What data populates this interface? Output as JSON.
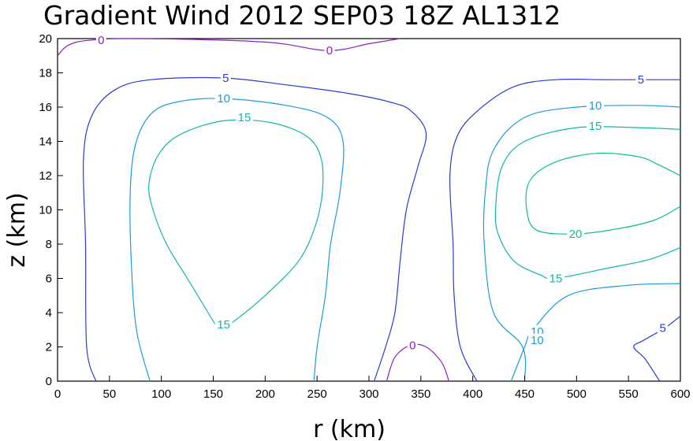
{
  "chart_data": {
    "type": "contour",
    "title": "Gradient Wind 2012 SEP03 18Z  AL1312",
    "xlabel": "r (km)",
    "ylabel": "z (km)",
    "xlim": [
      0,
      600
    ],
    "ylim": [
      0,
      20
    ],
    "x_ticks": [
      0,
      50,
      100,
      150,
      200,
      250,
      300,
      350,
      400,
      450,
      500,
      550,
      600
    ],
    "y_ticks": [
      0,
      2,
      4,
      6,
      8,
      10,
      12,
      14,
      16,
      18,
      20
    ],
    "grid": false,
    "legend": "none",
    "levels": [
      0,
      5,
      10,
      15,
      20
    ],
    "colors": {
      "0": "#8c1fc8",
      "5": "#2a3bd0",
      "10": "#1a9be0",
      "15": "#10b8a8",
      "20": "#10c090"
    },
    "contours": [
      {
        "level": 0,
        "points": [
          [
            0,
            19
          ],
          [
            10,
            19.6
          ],
          [
            30,
            19.9
          ],
          [
            80,
            20
          ],
          [
            200,
            19.8
          ],
          [
            260,
            19.3
          ],
          [
            300,
            19.7
          ],
          [
            330,
            20
          ]
        ]
      },
      {
        "level": 0,
        "points": [
          [
            317,
            0
          ],
          [
            325,
            1.4
          ],
          [
            340,
            2.1
          ],
          [
            355,
            2.0
          ],
          [
            370,
            1.1
          ],
          [
            377,
            0
          ]
        ]
      },
      {
        "level": 5,
        "points": [
          [
            37,
            0
          ],
          [
            28,
            2
          ],
          [
            27,
            8
          ],
          [
            25,
            13
          ],
          [
            33,
            15.5
          ],
          [
            55,
            17
          ],
          [
            90,
            17.6
          ],
          [
            160,
            17.7
          ],
          [
            220,
            17.3
          ],
          [
            280,
            16.8
          ],
          [
            320,
            16.3
          ],
          [
            340,
            15.8
          ],
          [
            355,
            14.5
          ],
          [
            347,
            12.5
          ],
          [
            336,
            10
          ],
          [
            330,
            7
          ],
          [
            325,
            4
          ],
          [
            316,
            2
          ],
          [
            305,
            0
          ]
        ]
      },
      {
        "level": 5,
        "points": [
          [
            404,
            0
          ],
          [
            388,
            2
          ],
          [
            382,
            5
          ],
          [
            381,
            8
          ],
          [
            378,
            12
          ],
          [
            385,
            14.3
          ],
          [
            405,
            15.8
          ],
          [
            440,
            17.2
          ],
          [
            480,
            17.6
          ],
          [
            530,
            17.6
          ],
          [
            600,
            17.6
          ]
        ]
      },
      {
        "level": 5,
        "points": [
          [
            600,
            3.8
          ],
          [
            585,
            3.1
          ],
          [
            565,
            2.4
          ],
          [
            555,
            2
          ],
          [
            566,
            1.3
          ],
          [
            580,
            0
          ]
        ]
      },
      {
        "level": 10,
        "points": [
          [
            89,
            0
          ],
          [
            76,
            3
          ],
          [
            71,
            7
          ],
          [
            70,
            11
          ],
          [
            75,
            13.8
          ],
          [
            90,
            15.6
          ],
          [
            115,
            16.3
          ],
          [
            160,
            16.5
          ],
          [
            220,
            16.1
          ],
          [
            260,
            15.4
          ],
          [
            275,
            14
          ],
          [
            272,
            11
          ],
          [
            263,
            8
          ],
          [
            258,
            5
          ],
          [
            250,
            2
          ],
          [
            247,
            0
          ]
        ]
      },
      {
        "level": 10,
        "points": [
          [
            437,
            0
          ],
          [
            450,
            2
          ],
          [
            458,
            3
          ],
          [
            492,
            5
          ],
          [
            550,
            5.6
          ],
          [
            600,
            5.7
          ]
        ]
      },
      {
        "level": 10,
        "points": [
          [
            450,
            0
          ],
          [
            448,
            2
          ],
          [
            420,
            4
          ],
          [
            411,
            8
          ],
          [
            412,
            11
          ],
          [
            420,
            13.5
          ],
          [
            450,
            15.4
          ],
          [
            500,
            16
          ],
          [
            560,
            16.1
          ],
          [
            600,
            16
          ]
        ]
      },
      {
        "level": 15,
        "points": [
          [
            155,
            3
          ],
          [
            145,
            4
          ],
          [
            125,
            6
          ],
          [
            105,
            8
          ],
          [
            92,
            10
          ],
          [
            88,
            11.5
          ],
          [
            97,
            13.2
          ],
          [
            118,
            14.4
          ],
          [
            160,
            15.2
          ],
          [
            205,
            15.1
          ],
          [
            240,
            14.3
          ],
          [
            254,
            13
          ],
          [
            255,
            11
          ],
          [
            248,
            9
          ],
          [
            232,
            7
          ],
          [
            200,
            5
          ],
          [
            170,
            3.5
          ],
          [
            155,
            3
          ]
        ]
      },
      {
        "level": 15,
        "points": [
          [
            600,
            7.8
          ],
          [
            570,
            7.1
          ],
          [
            530,
            6.6
          ],
          [
            480,
            6
          ],
          [
            465,
            6.2
          ],
          [
            440,
            7
          ],
          [
            425,
            8.5
          ],
          [
            422,
            10
          ],
          [
            428,
            12.5
          ],
          [
            450,
            14
          ],
          [
            500,
            14.8
          ],
          [
            560,
            14.8
          ],
          [
            600,
            14.7
          ]
        ]
      },
      {
        "level": 20,
        "points": [
          [
            600,
            12
          ],
          [
            580,
            12.6
          ],
          [
            560,
            13.1
          ],
          [
            520,
            13.3
          ],
          [
            480,
            12.8
          ],
          [
            455,
            11.7
          ],
          [
            452,
            10
          ],
          [
            462,
            8.8
          ],
          [
            500,
            8.6
          ],
          [
            540,
            8.9
          ],
          [
            575,
            9.4
          ],
          [
            600,
            10.2
          ]
        ]
      }
    ],
    "contour_labels": [
      {
        "text": "0",
        "x": 42,
        "y": 19.9,
        "level": 0
      },
      {
        "text": "0",
        "x": 262,
        "y": 19.3,
        "level": 0
      },
      {
        "text": "0",
        "x": 342,
        "y": 2.1,
        "level": 0
      },
      {
        "text": "5",
        "x": 162,
        "y": 17.7,
        "level": 5
      },
      {
        "text": "5",
        "x": 562,
        "y": 17.6,
        "level": 5
      },
      {
        "text": "5",
        "x": 583,
        "y": 3.1,
        "level": 5
      },
      {
        "text": "10",
        "x": 160,
        "y": 16.5,
        "level": 10
      },
      {
        "text": "10",
        "x": 518,
        "y": 16.1,
        "level": 10
      },
      {
        "text": "10",
        "x": 462,
        "y": 2.9,
        "level": 10
      },
      {
        "text": "10",
        "x": 462,
        "y": 2.4,
        "level": 10
      },
      {
        "text": "15",
        "x": 180,
        "y": 15.4,
        "level": 15
      },
      {
        "text": "15",
        "x": 518,
        "y": 14.9,
        "level": 15
      },
      {
        "text": "15",
        "x": 160,
        "y": 3.3,
        "level": 15
      },
      {
        "text": "15",
        "x": 480,
        "y": 6.0,
        "level": 15
      },
      {
        "text": "20",
        "x": 499,
        "y": 8.6,
        "level": 20
      }
    ]
  }
}
